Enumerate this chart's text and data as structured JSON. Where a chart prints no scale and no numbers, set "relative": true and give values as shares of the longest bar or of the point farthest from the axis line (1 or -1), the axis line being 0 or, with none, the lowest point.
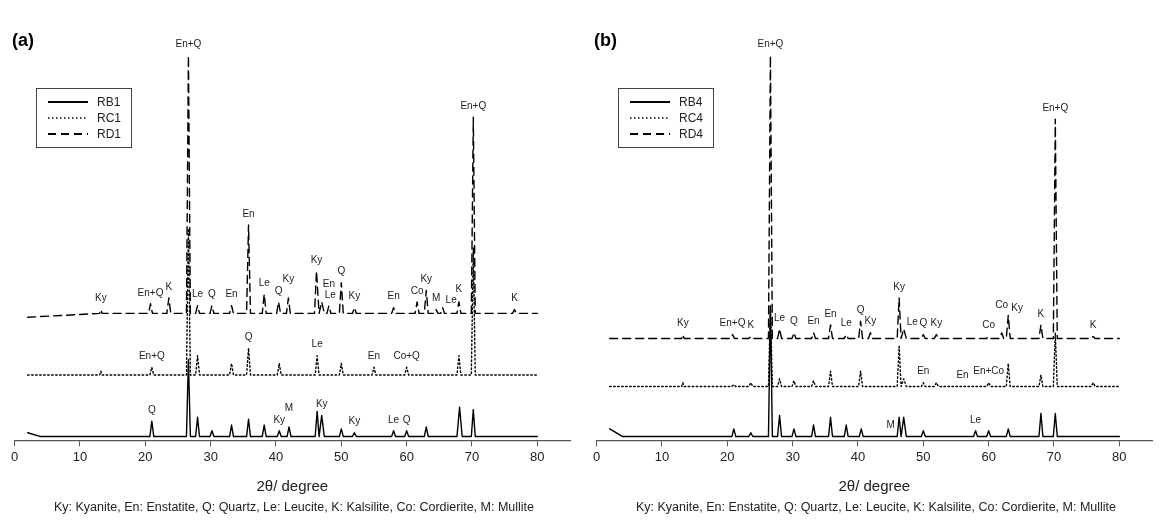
{
  "chart_data": [
    {
      "type": "line",
      "title": "(a)",
      "xlabel": "2θ/ degree",
      "relative": true,
      "xlim": [
        0,
        85
      ],
      "xticks": [
        0,
        10,
        20,
        30,
        40,
        50,
        60,
        70,
        80
      ],
      "legend": "top left",
      "series": [
        {
          "name": "RB1",
          "color": "#000000",
          "line_style": "solid",
          "x": [
            2,
            4,
            20.7,
            21,
            21.3,
            26.3,
            26.6,
            26.9,
            27.7,
            28,
            28.3,
            29.9,
            30.2,
            30.5,
            32.9,
            33.2,
            33.5,
            35.5,
            35.8,
            36.1,
            37.9,
            38.2,
            38.5,
            40.2,
            40.5,
            40.8,
            41.7,
            42,
            42.3,
            46,
            46.3,
            46.6,
            47,
            47.4,
            49.7,
            50,
            50.3,
            51.7,
            52,
            52.3,
            57.7,
            58,
            58.3,
            59.7,
            60,
            60.3,
            62.7,
            63,
            63.3,
            67.7,
            68.1,
            68.5,
            69.9,
            70.2,
            70.5,
            80
          ],
          "values": [
            0.02,
            0.01,
            0.01,
            0.05,
            0.01,
            0.01,
            0.21,
            0.01,
            0.01,
            0.06,
            0.01,
            0.01,
            0.025,
            0.01,
            0.01,
            0.04,
            0.01,
            0.01,
            0.055,
            0.01,
            0.01,
            0.04,
            0.01,
            0.01,
            0.025,
            0.01,
            0.01,
            0.035,
            0.01,
            0.01,
            0.075,
            0.01,
            0.065,
            0.01,
            0.01,
            0.03,
            0.01,
            0.01,
            0.02,
            0.01,
            0.01,
            0.025,
            0.01,
            0.01,
            0.025,
            0.01,
            0.01,
            0.035,
            0.01,
            0.01,
            0.086,
            0.01,
            0.01,
            0.08,
            0.01,
            0.01
          ]
        },
        {
          "name": "RC1",
          "color": "#000000",
          "line_style": "dotted",
          "x": [
            2,
            13,
            13.2,
            13.4,
            20.7,
            21,
            21.3,
            26.3,
            26.6,
            26.9,
            27.7,
            28,
            28.3,
            32.9,
            33.2,
            33.5,
            35.5,
            35.8,
            36.1,
            40.2,
            40.5,
            40.8,
            46,
            46.3,
            46.6,
            49.7,
            50,
            50.3,
            54.7,
            55,
            55.3,
            59.7,
            60,
            60.3,
            67.7,
            68,
            68.3,
            69.9,
            70.2,
            70.5,
            80
          ],
          "values": [
            0.17,
            0.17,
            0.18,
            0.17,
            0.17,
            0.19,
            0.17,
            0.17,
            0.55,
            0.17,
            0.17,
            0.22,
            0.17,
            0.17,
            0.2,
            0.17,
            0.17,
            0.24,
            0.17,
            0.17,
            0.2,
            0.17,
            0.17,
            0.22,
            0.17,
            0.17,
            0.2,
            0.17,
            0.17,
            0.19,
            0.17,
            0.17,
            0.19,
            0.17,
            0.17,
            0.22,
            0.17,
            0.17,
            0.5,
            0.17,
            0.17
          ]
        },
        {
          "name": "RD1",
          "color": "#000000",
          "line_style": "dashed",
          "x": [
            2,
            13,
            13.2,
            13.4,
            20.5,
            20.8,
            21.1,
            23.3,
            23.6,
            23.9,
            26.3,
            26.6,
            26.9,
            27.7,
            28,
            28.3,
            29.9,
            30.2,
            30.5,
            32.9,
            33.2,
            33.5,
            35.5,
            35.8,
            36.1,
            37.9,
            38.2,
            38.5,
            40.1,
            40.4,
            40.7,
            41.6,
            41.9,
            42.2,
            45.9,
            46.2,
            46.6,
            47,
            47.4,
            47.8,
            48.1,
            48.4,
            49.7,
            50,
            50.3,
            51.7,
            52,
            52.3,
            57.7,
            58,
            58.3,
            61.3,
            61.6,
            61.9,
            62.7,
            63,
            63.3,
            64.2,
            64.5,
            64.8,
            65.2,
            65.5,
            65.8,
            67.7,
            68,
            68.3,
            69.9,
            70.2,
            70.5,
            76.2,
            76.5,
            76.8,
            80
          ],
          "values": [
            0.32,
            0.33,
            0.34,
            0.33,
            0.33,
            0.355,
            0.33,
            0.33,
            0.37,
            0.33,
            0.33,
            1,
            0.33,
            0.33,
            0.35,
            0.33,
            0.33,
            0.35,
            0.33,
            0.33,
            0.35,
            0.33,
            0.33,
            0.56,
            0.33,
            0.33,
            0.38,
            0.33,
            0.33,
            0.36,
            0.33,
            0.33,
            0.37,
            0.33,
            0.33,
            0.44,
            0.33,
            0.36,
            0.33,
            0.33,
            0.35,
            0.33,
            0.33,
            0.41,
            0.33,
            0.33,
            0.345,
            0.33,
            0.33,
            0.345,
            0.33,
            0.33,
            0.36,
            0.33,
            0.33,
            0.39,
            0.33,
            0.33,
            0.34,
            0.33,
            0.33,
            0.345,
            0.33,
            0.33,
            0.36,
            0.33,
            0.33,
            0.84,
            0.33,
            0.33,
            0.34,
            0.33,
            0.33
          ]
        }
      ],
      "annotations": [
        {
          "text": "Ky",
          "x": 13.2,
          "y": 0.34
        },
        {
          "text": "En+Q",
          "x": 20.8,
          "y": 0.355
        },
        {
          "text": "K",
          "x": 23.6,
          "y": 0.37
        },
        {
          "text": "En+Q",
          "x": 26.6,
          "y": 1
        },
        {
          "text": "Le",
          "x": 28,
          "y": 0.35
        },
        {
          "text": "Q",
          "x": 30.2,
          "y": 0.35
        },
        {
          "text": "En",
          "x": 33.2,
          "y": 0.35
        },
        {
          "text": "En",
          "x": 35.8,
          "y": 0.56
        },
        {
          "text": "Le",
          "x": 38.2,
          "y": 0.38
        },
        {
          "text": "Q",
          "x": 40.4,
          "y": 0.36
        },
        {
          "text": "Ky",
          "x": 41.9,
          "y": 0.37
        },
        {
          "text": "Ky",
          "x": 46.2,
          "y": 0.44
        },
        {
          "text": "Le",
          "x": 47,
          "y": 0.36
        },
        {
          "text": "En",
          "x": 48.1,
          "y": 0.35
        },
        {
          "text": "Q",
          "x": 50,
          "y": 0.41
        },
        {
          "text": "Ky",
          "x": 52,
          "y": 0.345
        },
        {
          "text": "En",
          "x": 58,
          "y": 0.345
        },
        {
          "text": "Co",
          "x": 61.6,
          "y": 0.36
        },
        {
          "text": "Ky",
          "x": 63,
          "y": 0.39
        },
        {
          "text": "M",
          "x": 64.5,
          "y": 0.34
        },
        {
          "text": "Le",
          "x": 65.5,
          "y": 0.345
        },
        {
          "text": "K",
          "x": 68,
          "y": 0.36
        },
        {
          "text": "En+Q",
          "x": 70.2,
          "y": 0.84
        },
        {
          "text": "K",
          "x": 76.5,
          "y": 0.34
        },
        {
          "text": "En+Q",
          "x": 21,
          "y": 0.19
        },
        {
          "text": "Q",
          "x": 35.8,
          "y": 0.24
        },
        {
          "text": "Le",
          "x": 46.3,
          "y": 0.22
        },
        {
          "text": "En",
          "x": 55,
          "y": 0.19
        },
        {
          "text": "Co+Q",
          "x": 60,
          "y": 0.19
        },
        {
          "text": "Q",
          "x": 21,
          "y": 0.05
        },
        {
          "text": "Ky",
          "x": 40.5,
          "y": 0.025
        },
        {
          "text": "M",
          "x": 42,
          "y": 0.035
        },
        {
          "text": "Ky",
          "x": 47,
          "y": 0.065
        },
        {
          "text": "Ky",
          "x": 52,
          "y": 0.02
        },
        {
          "text": "Le",
          "x": 58,
          "y": 0.025
        },
        {
          "text": "Q",
          "x": 60,
          "y": 0.025
        },
        "Ky: Kyanite, En: Enstatite, Q: Quartz, Le: Leucite, K: Kalsilite, Co: Cordierite, M: Mullite"
      ]
    },
    {
      "type": "line",
      "title": "(b)",
      "xlabel": "2θ/ degree",
      "relative": true,
      "xlim": [
        0,
        85
      ],
      "xticks": [
        0,
        10,
        20,
        30,
        40,
        50,
        60,
        70,
        80
      ],
      "legend": "top left",
      "series": [
        {
          "name": "RB4",
          "color": "#000000",
          "line_style": "solid",
          "x": [
            2,
            4,
            20.7,
            21,
            21.3,
            23.3,
            23.6,
            23.9,
            26.3,
            26.6,
            26.9,
            27.7,
            28,
            28.3,
            29.9,
            30.2,
            30.5,
            32.9,
            33.2,
            33.5,
            35.5,
            35.8,
            36.1,
            37.9,
            38.2,
            38.5,
            40.2,
            40.5,
            40.8,
            46,
            46.3,
            46.6,
            47,
            47.4,
            49.7,
            50,
            50.3,
            57.7,
            58,
            58.3,
            59.7,
            60,
            60.3,
            62.7,
            63,
            63.3,
            67.7,
            68,
            68.3,
            69.9,
            70.2,
            70.5,
            80
          ],
          "values": [
            0.03,
            0.01,
            0.01,
            0.03,
            0.01,
            0.01,
            0.02,
            0.01,
            0.01,
            0.35,
            0.01,
            0.01,
            0.065,
            0.01,
            0.01,
            0.03,
            0.01,
            0.01,
            0.04,
            0.01,
            0.01,
            0.06,
            0.01,
            0.01,
            0.04,
            0.01,
            0.01,
            0.03,
            0.01,
            0.01,
            0.06,
            0.01,
            0.06,
            0.01,
            0.01,
            0.025,
            0.01,
            0.01,
            0.025,
            0.01,
            0.01,
            0.025,
            0.01,
            0.01,
            0.03,
            0.01,
            0.01,
            0.07,
            0.01,
            0.01,
            0.07,
            0.01,
            0.01
          ]
        },
        {
          "name": "RC4",
          "color": "#000000",
          "line_style": "dotted",
          "x": [
            2,
            13,
            13.2,
            13.4,
            20.7,
            21,
            21.3,
            23.3,
            23.6,
            23.9,
            26.3,
            26.6,
            26.9,
            27.7,
            28,
            28.3,
            29.9,
            30.2,
            30.5,
            32.9,
            33.2,
            33.5,
            35.5,
            35.8,
            36.1,
            40.1,
            40.4,
            40.7,
            46,
            46.3,
            46.6,
            47,
            47.4,
            49.7,
            50,
            50.3,
            51.7,
            52,
            52.3,
            59.7,
            60,
            60.3,
            62.7,
            63,
            63.3,
            67.7,
            68,
            68.3,
            69.9,
            70.2,
            70.5,
            75.7,
            76,
            76.3,
            80
          ],
          "values": [
            0.14,
            0.14,
            0.15,
            0.14,
            0.14,
            0.145,
            0.14,
            0.14,
            0.15,
            0.14,
            0.14,
            0.35,
            0.14,
            0.14,
            0.16,
            0.14,
            0.14,
            0.155,
            0.14,
            0.14,
            0.155,
            0.14,
            0.14,
            0.18,
            0.14,
            0.14,
            0.18,
            0.14,
            0.14,
            0.245,
            0.14,
            0.16,
            0.14,
            0.14,
            0.15,
            0.14,
            0.14,
            0.15,
            0.14,
            0.14,
            0.15,
            0.14,
            0.14,
            0.2,
            0.14,
            0.14,
            0.17,
            0.14,
            0.14,
            0.28,
            0.14,
            0.14,
            0.15,
            0.14,
            0.14
          ]
        },
        {
          "name": "RD4",
          "color": "#000000",
          "line_style": "dashed",
          "x": [
            2,
            13,
            13.2,
            13.4,
            20.5,
            20.8,
            21.1,
            23.3,
            23.6,
            23.9,
            26.3,
            26.6,
            26.9,
            27.7,
            28,
            28.3,
            29.9,
            30.2,
            30.5,
            32.9,
            33.2,
            33.5,
            35.5,
            35.8,
            36.1,
            37.9,
            38.2,
            38.5,
            40.1,
            40.4,
            40.7,
            41.6,
            41.9,
            42.2,
            46,
            46.3,
            46.6,
            47,
            47.4,
            49.7,
            50,
            50.3,
            51.7,
            52,
            52.3,
            59.7,
            60,
            60.3,
            61.7,
            62,
            62.3,
            62.7,
            63,
            63.3,
            67.7,
            68,
            68.3,
            69.9,
            70.2,
            70.5,
            75.7,
            76,
            76.3,
            80
          ],
          "values": [
            0.265,
            0.265,
            0.275,
            0.265,
            0.265,
            0.275,
            0.265,
            0.265,
            0.27,
            0.265,
            0.265,
            1,
            0.265,
            0.265,
            0.29,
            0.265,
            0.265,
            0.28,
            0.265,
            0.265,
            0.28,
            0.265,
            0.265,
            0.3,
            0.265,
            0.265,
            0.275,
            0.265,
            0.265,
            0.31,
            0.265,
            0.265,
            0.28,
            0.265,
            0.265,
            0.37,
            0.265,
            0.29,
            0.265,
            0.265,
            0.275,
            0.265,
            0.265,
            0.275,
            0.265,
            0.265,
            0.27,
            0.265,
            0.265,
            0.28,
            0.265,
            0.265,
            0.325,
            0.265,
            0.265,
            0.3,
            0.265,
            0.265,
            0.835,
            0.265,
            0.265,
            0.27,
            0.265,
            0.265
          ]
        }
      ],
      "annotations": [
        {
          "text": "Ky",
          "x": 13.2,
          "y": 0.275
        },
        {
          "text": "En+Q",
          "x": 20.8,
          "y": 0.275
        },
        {
          "text": "K",
          "x": 23.6,
          "y": 0.27
        },
        {
          "text": "En+Q",
          "x": 26.6,
          "y": 1
        },
        {
          "text": "Le",
          "x": 28,
          "y": 0.29
        },
        {
          "text": "Q",
          "x": 30.2,
          "y": 0.28
        },
        {
          "text": "En",
          "x": 33.2,
          "y": 0.28
        },
        {
          "text": "En",
          "x": 35.8,
          "y": 0.3
        },
        {
          "text": "Le",
          "x": 38.2,
          "y": 0.275
        },
        {
          "text": "Q",
          "x": 40.4,
          "y": 0.31
        },
        {
          "text": "Ky",
          "x": 41.9,
          "y": 0.28
        },
        {
          "text": "Ky",
          "x": 46.3,
          "y": 0.37
        },
        {
          "text": "Le",
          "x": 47,
          "y": 0.29
        },
        {
          "text": "Q",
          "x": 50,
          "y": 0.275
        },
        {
          "text": "Ky",
          "x": 52,
          "y": 0.275
        },
        {
          "text": "Co",
          "x": 60,
          "y": 0.27
        },
        {
          "text": "Co",
          "x": 62,
          "y": 0.28
        },
        {
          "text": "Ky",
          "x": 63,
          "y": 0.325
        },
        {
          "text": "K",
          "x": 68,
          "y": 0.3
        },
        {
          "text": "En+Q",
          "x": 70.2,
          "y": 0.835
        },
        {
          "text": "K",
          "x": 76,
          "y": 0.27
        },
        {
          "text": "En",
          "x": 50,
          "y": 0.15
        },
        {
          "text": "En",
          "x": 56,
          "y": 0.14
        },
        {
          "text": "En+Co",
          "x": 60,
          "y": 0.15
        },
        {
          "text": "M",
          "x": 45,
          "y": 0.01
        },
        {
          "text": "Le",
          "x": 58,
          "y": 0.025
        },
        "Ky: Kyanite, En: Enstatite, Q: Quartz, Le: Leucite, K: Kalsilite, Co: Cordierite, M: Mullite"
      ]
    }
  ]
}
